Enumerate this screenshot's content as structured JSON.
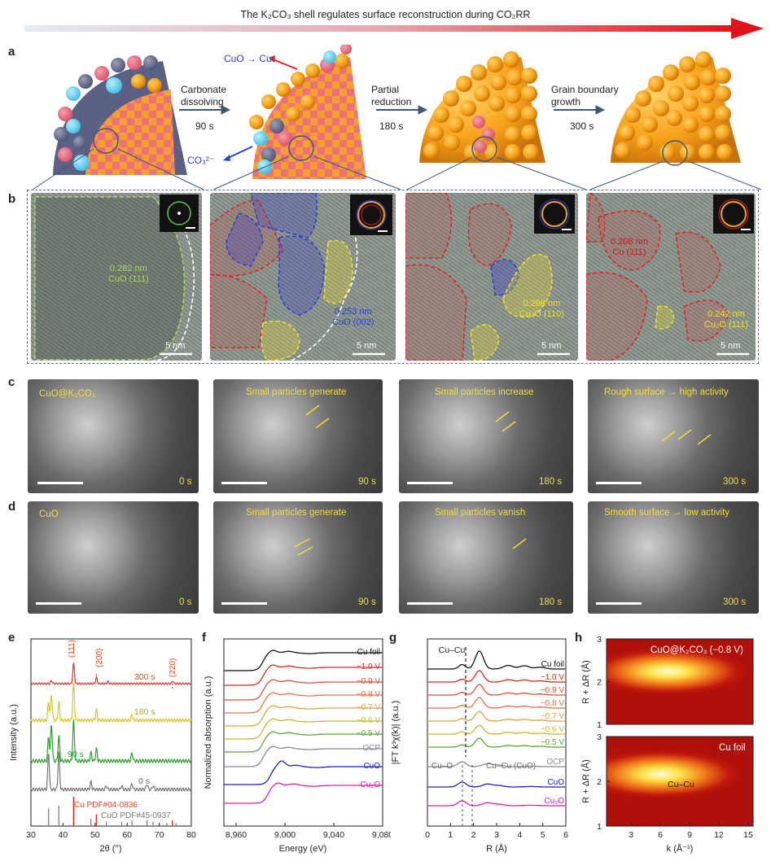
{
  "header": {
    "title": "The K₂CO₃ shell regulates surface reconstruction during CO₂RR"
  },
  "panel_labels": {
    "a": "a",
    "b": "b",
    "c": "c",
    "d": "d",
    "e": "e",
    "f": "f",
    "g": "g",
    "h": "h"
  },
  "panel_a": {
    "steps": [
      {
        "label_line1": "Carbonate",
        "label_line2": "dissolving",
        "time": "90 s"
      },
      {
        "label_line1": "Partial",
        "label_line2": "reduction",
        "time": "180 s"
      },
      {
        "label_line1": "Grain boundary",
        "label_line2": "growth",
        "time": "300 s"
      }
    ],
    "cuo_to_cu": "CuO → Cu",
    "co3": "CO₃²⁻"
  },
  "panel_b": {
    "scale": "5 nm",
    "annotations": [
      {
        "d": "0.282 nm",
        "phase": "CuO (111)",
        "color": "#7ec83a"
      },
      {
        "d": "0.253 nm",
        "phase": "CuO (002)",
        "color": "#2a3fd6"
      },
      {
        "d": "0.298 nm",
        "phase": "Cu₂O (110)",
        "color": "#f0e030"
      },
      {
        "d": "0.208 nm",
        "phase": "Cu (111)",
        "color": "#c0201c"
      },
      {
        "d": "0.242 nm",
        "phase": "Cu₂O (111)",
        "color": "#f0e030"
      }
    ]
  },
  "panel_c": {
    "titles": [
      "CuO@K₂CO₃",
      "Small particles generate",
      "Small particles increase",
      "Rough surface → high activity"
    ],
    "times": [
      "0 s",
      "90 s",
      "180 s",
      "300 s"
    ]
  },
  "panel_d": {
    "titles": [
      "CuO",
      "Small particles generate",
      "Small particles vanish",
      "Smooth surface → low activity"
    ],
    "times": [
      "0 s",
      "90 s",
      "180 s",
      "300 s"
    ]
  },
  "colors": {
    "red": "#e53025",
    "green": "#2aa12a",
    "yellow": "#d9c52a",
    "gray": "#777777",
    "blue": "#1a22c0",
    "magenta": "#e01ab8",
    "black": "#111111"
  },
  "chart_data": [
    {
      "panel": "e",
      "type": "line",
      "xlabel": "2θ (°)",
      "ylabel": "Intensity (a.u.)",
      "xlim": [
        30,
        80
      ],
      "xticks": [
        "30",
        "40",
        "50",
        "60",
        "70",
        "80"
      ],
      "series": [
        {
          "name": "300 s"
        },
        {
          "name": "180 s"
        },
        {
          "name": "90 s"
        },
        {
          "name": "0 s"
        }
      ],
      "peak_labels": [
        "(111)",
        "(200)",
        "(220)"
      ],
      "references": [
        "Cu PDF#04-0836",
        "CuO PDF#45-0937"
      ]
    },
    {
      "panel": "f",
      "type": "line",
      "xlabel": "Energy (eV)",
      "ylabel": "Normalized absorption (a.u.)",
      "xlim": [
        8960,
        9080
      ],
      "xticks": [
        "8,960",
        "9,000",
        "9,040",
        "9,080"
      ],
      "series": [
        {
          "name": "Cu foil"
        },
        {
          "name": "−1.0 V"
        },
        {
          "name": "−0.9 V"
        },
        {
          "name": "−0.8 V"
        },
        {
          "name": "−0.7 V"
        },
        {
          "name": "−0.6 V"
        },
        {
          "name": "−0.5 V"
        },
        {
          "name": "OCP"
        },
        {
          "name": "CuO"
        },
        {
          "name": "Cu₂O"
        }
      ]
    },
    {
      "panel": "g",
      "type": "line",
      "xlabel": "R (Å)",
      "ylabel": "|FT k³χ(k)| (a.u.)",
      "xlim": [
        0,
        6
      ],
      "xticks": [
        "0",
        "1",
        "2",
        "3",
        "4",
        "5",
        "6"
      ],
      "annotations": [
        "Cu–Cu",
        "Cu–O",
        "Cu–Cu (CuO)"
      ],
      "series": [
        {
          "name": "Cu foil"
        },
        {
          "name": "−1.0 V"
        },
        {
          "name": "−0.9 V"
        },
        {
          "name": "−0.8 V"
        },
        {
          "name": "−0.7 V"
        },
        {
          "name": "−0.6 V"
        },
        {
          "name": "−0.5 V"
        },
        {
          "name": "OCP"
        },
        {
          "name": "CuO"
        },
        {
          "name": "Cu₂O"
        }
      ]
    },
    {
      "panel": "h",
      "type": "heatmap",
      "xlabel": "k (Å⁻¹)",
      "ylabel": "R + ΔR (Å)",
      "xticks": [
        "3",
        "6",
        "9",
        "12",
        "15"
      ],
      "yticks": [
        "1",
        "2",
        "3"
      ],
      "maps": [
        {
          "title": "CuO@K₂CO₃ (−0.8 V)",
          "peak": {
            "k": 8,
            "R": 2.2
          }
        },
        {
          "title": "Cu foil",
          "peak": {
            "k": 7,
            "R": 2.2
          },
          "annotation": "Cu–Cu"
        }
      ]
    }
  ]
}
